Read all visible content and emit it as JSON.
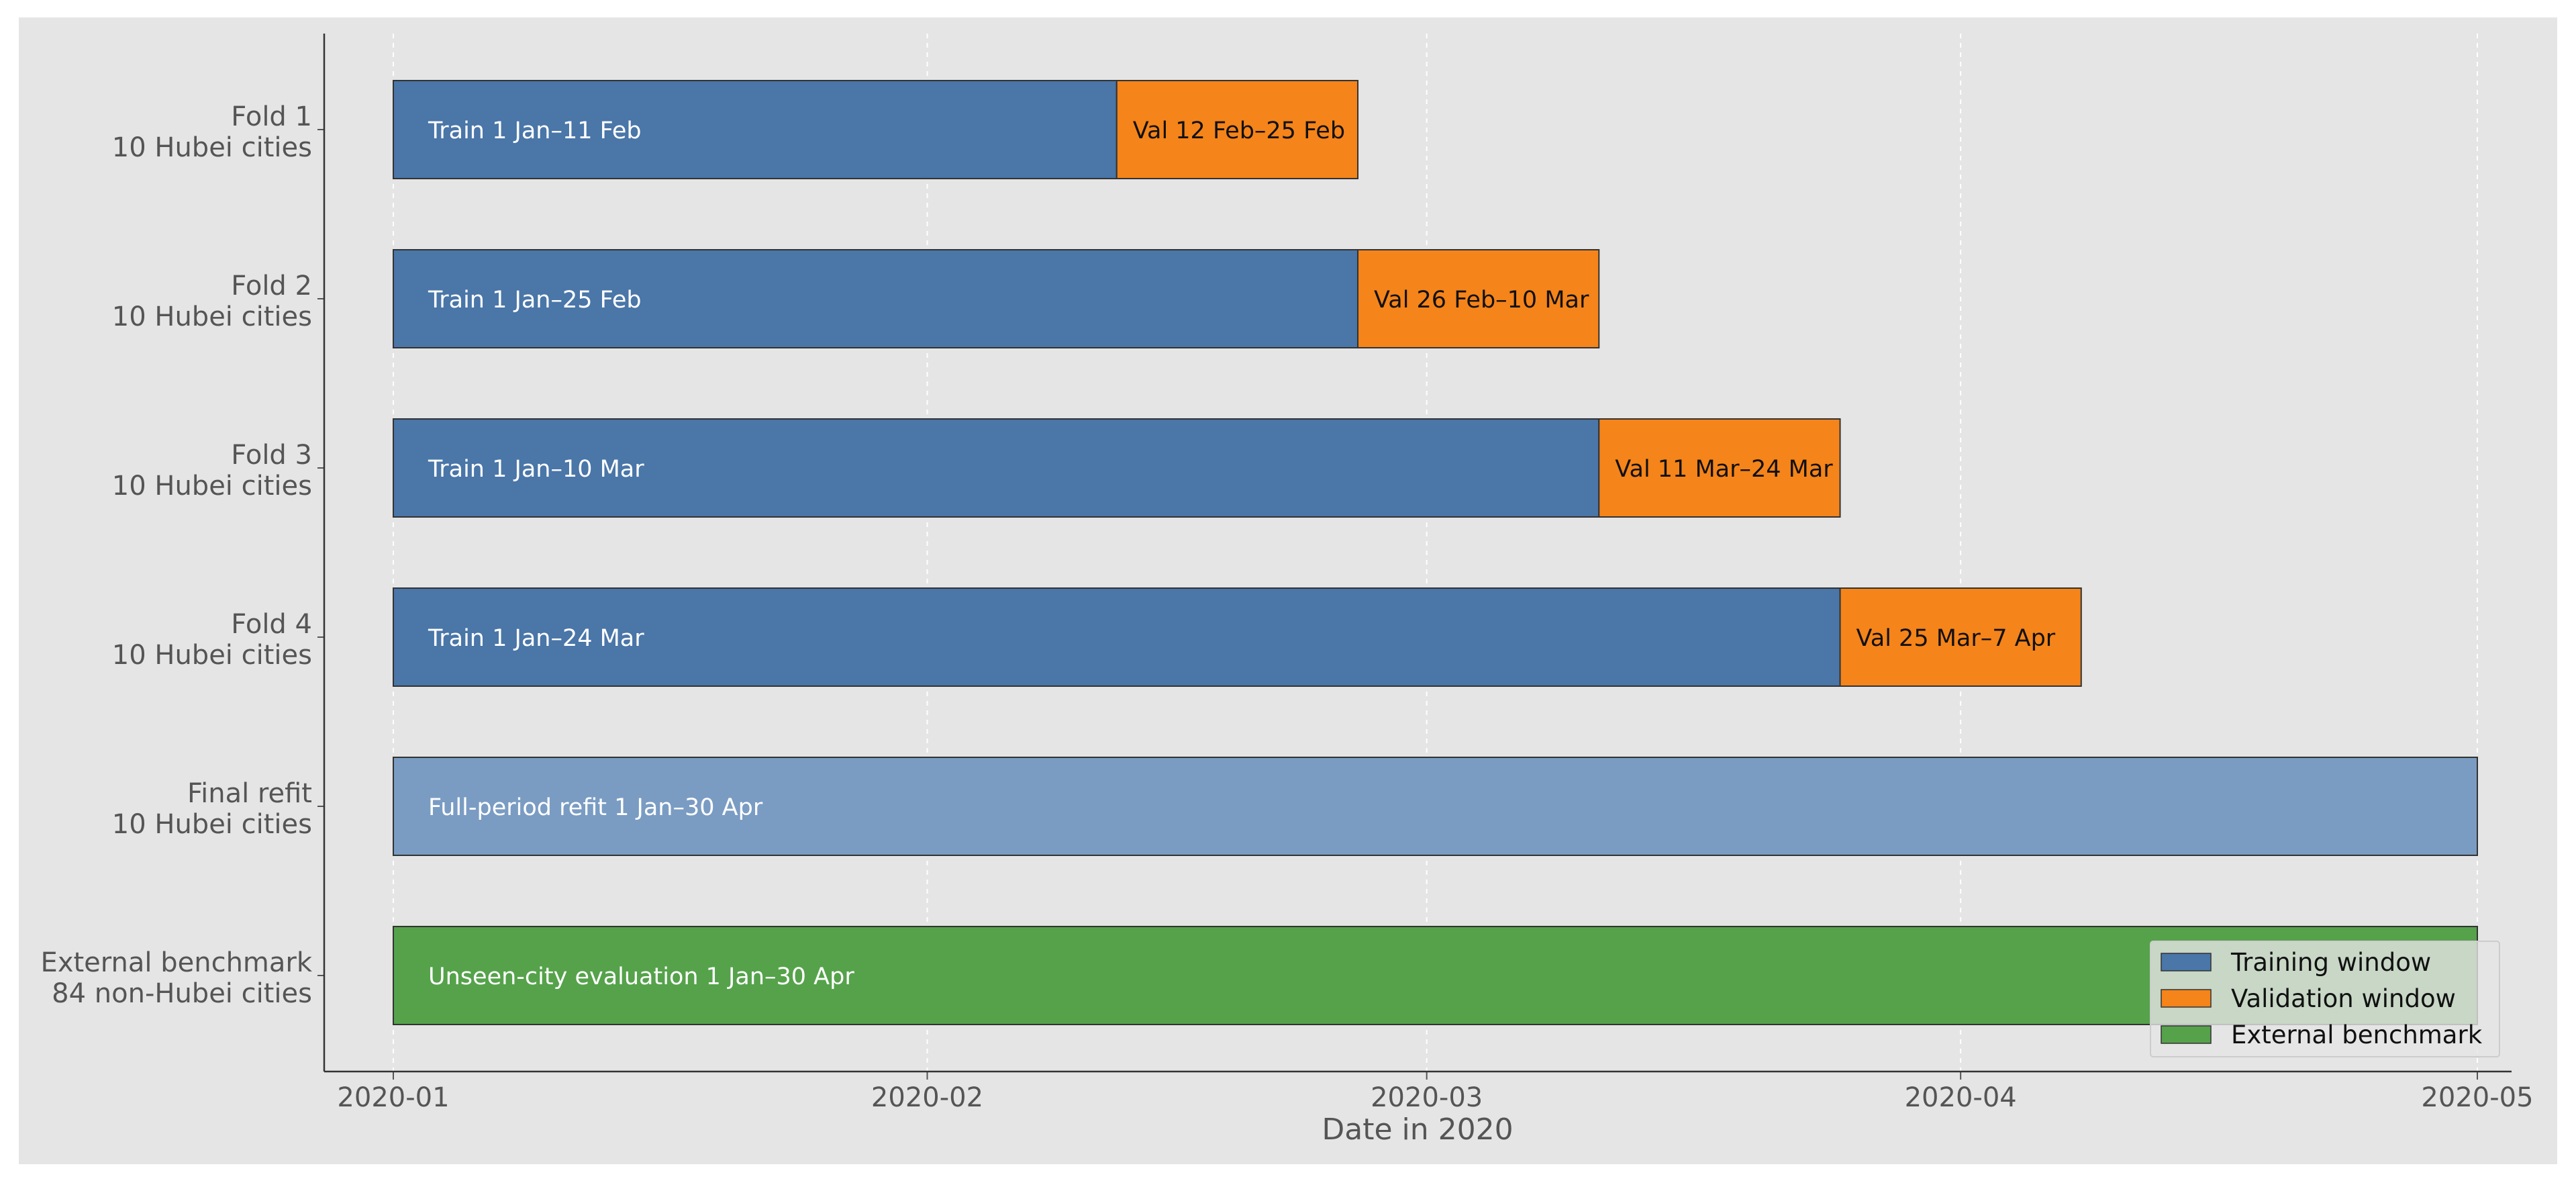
{
  "chart_data": {
    "type": "gantt",
    "title": "",
    "xlabel": "Date in 2020",
    "ylabel": "",
    "x_axis": {
      "type": "date",
      "range": [
        "2019-12-29",
        "2020-05-03"
      ],
      "ticks": [
        "2020-01-01",
        "2020-02-01",
        "2020-03-01",
        "2020-04-01",
        "2020-05-01"
      ],
      "tick_labels": [
        "2020-01",
        "2020-02",
        "2020-03",
        "2020-04",
        "2020-05"
      ],
      "grid": "vertical dashed"
    },
    "rows": [
      {
        "label_line1": "Fold 1",
        "label_line2": "10 Hubei cities",
        "segments": [
          {
            "series": "Training window",
            "start": "2020-01-01",
            "end": "2020-02-12",
            "label": "Train 1 Jan–11 Feb"
          },
          {
            "series": "Validation window",
            "start": "2020-02-12",
            "end": "2020-02-26",
            "label": "Val 12 Feb–25 Feb"
          }
        ]
      },
      {
        "label_line1": "Fold 2",
        "label_line2": "10 Hubei cities",
        "segments": [
          {
            "series": "Training window",
            "start": "2020-01-01",
            "end": "2020-02-26",
            "label": "Train 1 Jan–25 Feb"
          },
          {
            "series": "Validation window",
            "start": "2020-02-26",
            "end": "2020-03-11",
            "label": "Val 26 Feb–10 Mar"
          }
        ]
      },
      {
        "label_line1": "Fold 3",
        "label_line2": "10 Hubei cities",
        "segments": [
          {
            "series": "Training window",
            "start": "2020-01-01",
            "end": "2020-03-11",
            "label": "Train 1 Jan–10 Mar"
          },
          {
            "series": "Validation window",
            "start": "2020-03-11",
            "end": "2020-03-25",
            "label": "Val 11 Mar–24 Mar"
          }
        ]
      },
      {
        "label_line1": "Fold 4",
        "label_line2": "10 Hubei cities",
        "segments": [
          {
            "series": "Training window",
            "start": "2020-01-01",
            "end": "2020-03-25",
            "label": "Train 1 Jan–24 Mar"
          },
          {
            "series": "Validation window",
            "start": "2020-03-25",
            "end": "2020-04-08",
            "label": "Val 25 Mar–7 Apr"
          }
        ]
      },
      {
        "label_line1": "Final refit",
        "label_line2": "10 Hubei cities",
        "segments": [
          {
            "series": "Full-period refit",
            "start": "2020-01-01",
            "end": "2020-05-01",
            "label": "Full-period refit 1 Jan–30 Apr"
          }
        ]
      },
      {
        "label_line1": "External benchmark",
        "label_line2": "84 non-Hubei cities",
        "segments": [
          {
            "series": "External benchmark",
            "start": "2020-01-01",
            "end": "2020-05-01",
            "label": "Unseen-city evaluation 1 Jan–30 Apr"
          }
        ]
      }
    ],
    "legend": {
      "placement": "lower-right",
      "entries": [
        {
          "label": "Training window",
          "color": "#4a76a8"
        },
        {
          "label": "Validation window",
          "color": "#f5841a"
        },
        {
          "label": "External benchmark",
          "color": "#55a24b"
        }
      ]
    },
    "colors": {
      "Training window": "#4a76a8",
      "Validation window": "#f5841a",
      "Full-period refit": "#7a9cc3",
      "External benchmark": "#55a24b",
      "plot_background": "#e5e5e5",
      "grid": "#ffffff"
    }
  }
}
